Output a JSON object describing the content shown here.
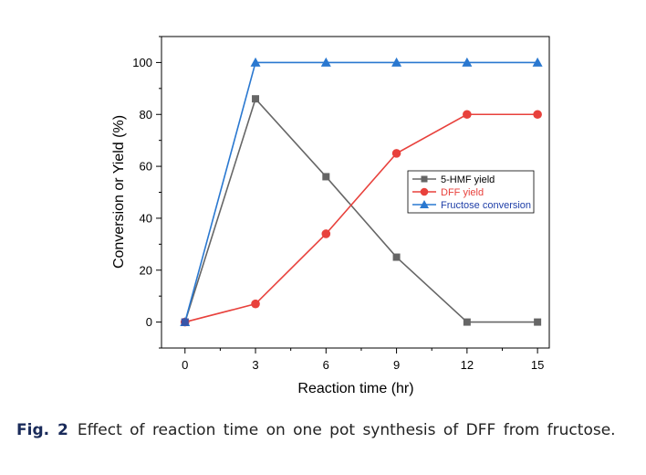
{
  "chart_data": {
    "type": "line",
    "title": "",
    "xlabel": "Reaction time (hr)",
    "ylabel": "Conversion or Yield (%)",
    "x": [
      0,
      3,
      6,
      9,
      12,
      15
    ],
    "xlim": [
      -1,
      15.5
    ],
    "ylim": [
      -10,
      110
    ],
    "xticks": [
      0,
      3,
      6,
      9,
      12,
      15
    ],
    "yticks": [
      0,
      20,
      40,
      60,
      80,
      100
    ],
    "grid": false,
    "legend_position": "center-right",
    "series": [
      {
        "name": "5-HMF yield",
        "marker": "square",
        "color": "#666666",
        "text_color": "#000000",
        "values": [
          0,
          86,
          56,
          25,
          0,
          0
        ]
      },
      {
        "name": "DFF yield",
        "marker": "circle",
        "color": "#e8413c",
        "text_color": "#e8413c",
        "values": [
          0,
          7,
          34,
          65,
          80,
          80
        ]
      },
      {
        "name": "Fructose conversion",
        "marker": "triangle",
        "color": "#2a78d0",
        "text_color": "#1f3fa8",
        "values": [
          0,
          100,
          100,
          100,
          100,
          100
        ]
      }
    ],
    "extra_points": [
      {
        "x": 0,
        "y": 0,
        "marker": "square",
        "color": "#3a55a8"
      }
    ]
  },
  "caption": {
    "label": "Fig. 2",
    "text": "Effect of reaction time on one pot synthesis of DFF from fructose."
  }
}
